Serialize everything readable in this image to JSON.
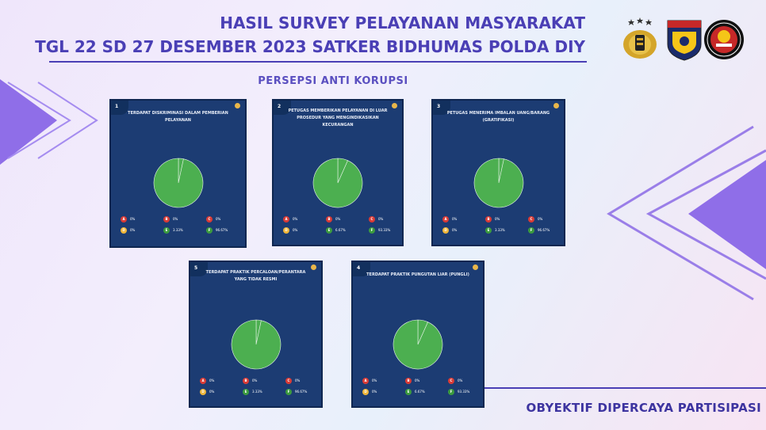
{
  "header": {
    "title_line1": "HASIL SURVEY PELAYANAN MASYARAKAT",
    "title_line2": "TGL 22 SD 27 DESEMBER 2023 SATKER BIDHUMAS POLDA DIY",
    "subtitle": "PERSEPSI ANTI KORUPSI",
    "logo_2_text": "D.I.YOGYAKARTA"
  },
  "footer": {
    "text": "OBYEKTIF DIPERCAYA PARTISIPASI"
  },
  "colors": {
    "title": "#4a3fb5",
    "card_bg": "#1c3c73",
    "pie_green": "#4caf50",
    "grade_a": "#d93b36",
    "grade_b": "#d93b36",
    "grade_c": "#d93b36",
    "grade_d": "#f0b63a",
    "grade_e": "#3c9b3f",
    "grade_f": "#3c9b3f"
  },
  "chart_data": [
    {
      "type": "pie",
      "number": "1",
      "title": "TERDAPAT DISKRIMINASI DALAM PEMBERIAN PELAYANAN",
      "legend": [
        {
          "label": "A",
          "value": 0,
          "text": "0%"
        },
        {
          "label": "B",
          "value": 0,
          "text": "0%"
        },
        {
          "label": "C",
          "value": 0,
          "text": "0%"
        },
        {
          "label": "D",
          "value": 0,
          "text": "0%"
        },
        {
          "label": "E",
          "value": 3.33,
          "text": "3.33%"
        },
        {
          "label": "F",
          "value": 96.67,
          "text": "96.67%"
        }
      ]
    },
    {
      "type": "pie",
      "number": "2",
      "title": "PETUGAS MEMBERIKAN PELAYANAN DI LUAR PROSEDUR YANG MENGINDIKASIKAN KECURANGAN",
      "legend": [
        {
          "label": "A",
          "value": 0,
          "text": "0%"
        },
        {
          "label": "B",
          "value": 0,
          "text": "0%"
        },
        {
          "label": "C",
          "value": 0,
          "text": "0%"
        },
        {
          "label": "D",
          "value": 0,
          "text": "0%"
        },
        {
          "label": "E",
          "value": 6.67,
          "text": "6.67%"
        },
        {
          "label": "F",
          "value": 93.33,
          "text": "93.33%"
        }
      ]
    },
    {
      "type": "pie",
      "number": "3",
      "title": "PETUGAS MENERIMA IMBALAN UANG/BARANG (GRATIFIKASI)",
      "legend": [
        {
          "label": "A",
          "value": 0,
          "text": "0%"
        },
        {
          "label": "B",
          "value": 0,
          "text": "0%"
        },
        {
          "label": "C",
          "value": 0,
          "text": "0%"
        },
        {
          "label": "D",
          "value": 0,
          "text": "0%"
        },
        {
          "label": "E",
          "value": 3.33,
          "text": "3.33%"
        },
        {
          "label": "F",
          "value": 96.67,
          "text": "96.67%"
        }
      ]
    },
    {
      "type": "pie",
      "number": "5",
      "title": "TERDAPAT PRAKTIK PERCALOAN/PERANTARA YANG TIDAK RESMI",
      "legend": [
        {
          "label": "A",
          "value": 0,
          "text": "0%"
        },
        {
          "label": "B",
          "value": 0,
          "text": "0%"
        },
        {
          "label": "C",
          "value": 0,
          "text": "0%"
        },
        {
          "label": "D",
          "value": 0,
          "text": "0%"
        },
        {
          "label": "E",
          "value": 3.33,
          "text": "3.33%"
        },
        {
          "label": "F",
          "value": 96.67,
          "text": "96.67%"
        }
      ]
    },
    {
      "type": "pie",
      "number": "4",
      "title": "TERDAPAT PRAKTIK PUNGUTAN LIAR (PUNGLI)",
      "legend": [
        {
          "label": "A",
          "value": 0,
          "text": "0%"
        },
        {
          "label": "B",
          "value": 0,
          "text": "0%"
        },
        {
          "label": "C",
          "value": 0,
          "text": "0%"
        },
        {
          "label": "D",
          "value": 0,
          "text": "0%"
        },
        {
          "label": "E",
          "value": 6.67,
          "text": "6.67%"
        },
        {
          "label": "F",
          "value": 93.33,
          "text": "93.33%"
        }
      ]
    }
  ]
}
